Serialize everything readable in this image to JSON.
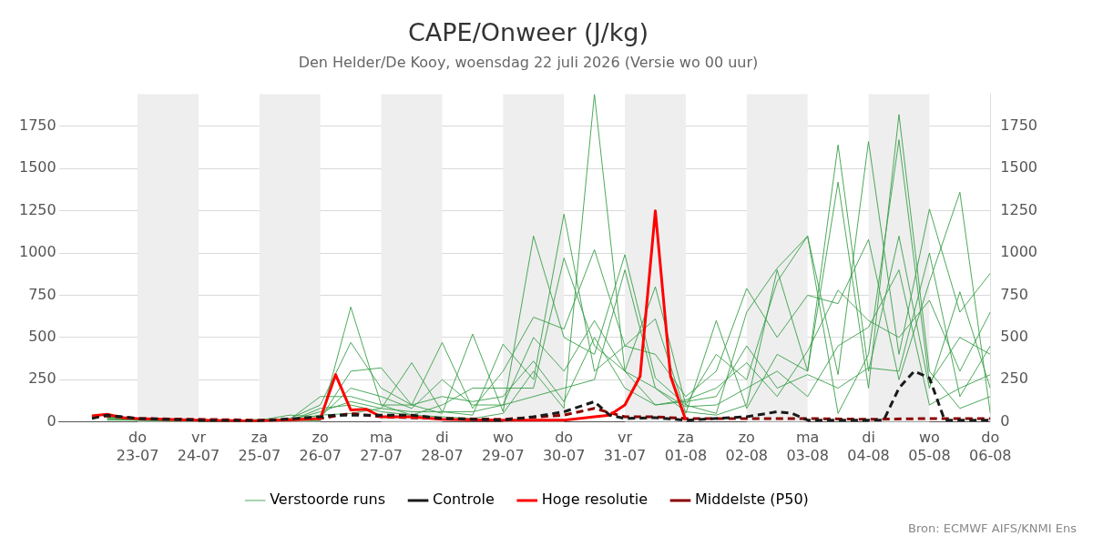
{
  "chart_data": {
    "type": "line",
    "title": "CAPE/Onweer (J/kg)",
    "subtitle": "Den Helder/De Kooy, woensdag 22 juli 2026 (Versie wo 00 uur)",
    "x": [
      "2026-07-22T12:00",
      "2026-07-23T00:00",
      "2026-07-23T12:00",
      "2026-07-24T00:00",
      "2026-07-24T12:00",
      "2026-07-25T00:00",
      "2026-07-25T12:00",
      "2026-07-26T00:00",
      "2026-07-26T12:00",
      "2026-07-27T00:00",
      "2026-07-27T12:00",
      "2026-07-28T00:00",
      "2026-07-28T12:00",
      "2026-07-29T00:00",
      "2026-07-29T12:00",
      "2026-07-30T00:00",
      "2026-07-30T12:00",
      "2026-07-31T00:00",
      "2026-07-31T12:00",
      "2026-08-01T00:00",
      "2026-08-01T12:00",
      "2026-08-02T00:00",
      "2026-08-02T12:00",
      "2026-08-03T00:00",
      "2026-08-03T12:00",
      "2026-08-04T00:00",
      "2026-08-04T12:00",
      "2026-08-05T00:00",
      "2026-08-05T12:00",
      "2026-08-06T00:00"
    ],
    "series": [
      {
        "name": "Verstoorde runs",
        "color": "#3a9f4a",
        "line_style": "solid",
        "values": [
          30,
          20,
          10,
          10,
          5,
          5,
          10,
          5,
          680,
          100,
          40,
          30,
          20,
          50,
          300,
          80,
          1940,
          300,
          200,
          60,
          40,
          100,
          900,
          300,
          1420,
          200,
          1820,
          300,
          80,
          150
        ]
      },
      {
        "color": "#3a9f4a",
        "line_style": "solid",
        "values": [
          40,
          20,
          15,
          5,
          10,
          10,
          5,
          20,
          300,
          320,
          100,
          50,
          520,
          60,
          1100,
          500,
          400,
          990,
          260,
          100,
          50,
          650,
          910,
          1100,
          280,
          1660,
          400,
          1260,
          650,
          880
        ]
      },
      {
        "color": "#3a9f4a",
        "line_style": "solid",
        "values": [
          20,
          15,
          10,
          10,
          5,
          15,
          10,
          60,
          120,
          80,
          350,
          60,
          40,
          460,
          250,
          1230,
          300,
          450,
          610,
          50,
          600,
          80,
          400,
          300,
          1640,
          300,
          1100,
          200,
          770,
          200
        ]
      },
      {
        "color": "#3a9f4a",
        "line_style": "solid",
        "values": [
          10,
          10,
          5,
          5,
          5,
          5,
          20,
          100,
          470,
          200,
          100,
          470,
          80,
          300,
          620,
          550,
          1020,
          450,
          400,
          150,
          300,
          790,
          500,
          750,
          700,
          1080,
          250,
          830,
          1360,
          50
        ]
      },
      {
        "color": "#3a9f4a",
        "line_style": "solid",
        "values": [
          30,
          20,
          10,
          10,
          10,
          10,
          40,
          30,
          200,
          150,
          80,
          250,
          100,
          100,
          500,
          300,
          600,
          300,
          800,
          100,
          400,
          250,
          830,
          1100,
          50,
          400,
          1670,
          230,
          500,
          400
        ]
      },
      {
        "color": "#3a9f4a",
        "line_style": "solid",
        "values": [
          20,
          10,
          10,
          5,
          5,
          5,
          5,
          80,
          100,
          60,
          40,
          100,
          200,
          200,
          200,
          970,
          450,
          300,
          100,
          130,
          200,
          350,
          150,
          420,
          780,
          600,
          500,
          720,
          300,
          650
        ]
      },
      {
        "color": "#3a9f4a",
        "line_style": "solid",
        "values": [
          15,
          10,
          5,
          5,
          5,
          5,
          10,
          40,
          50,
          80,
          60,
          60,
          60,
          100,
          150,
          200,
          250,
          900,
          200,
          90,
          100,
          200,
          300,
          150,
          450,
          560,
          900,
          100,
          200,
          280
        ]
      },
      {
        "color": "#3a9f4a",
        "line_style": "solid",
        "values": [
          25,
          15,
          10,
          5,
          5,
          10,
          15,
          150,
          150,
          100,
          100,
          150,
          120,
          150,
          360,
          120,
          500,
          200,
          100,
          120,
          150,
          450,
          200,
          280,
          200,
          320,
          300,
          1000,
          150,
          450
        ]
      },
      {
        "name": "Controle",
        "color": "#1a1a1a",
        "line_style": "dashed",
        "x": [
          "2026-07-22T06:00",
          "2026-07-22T12:00",
          "2026-07-23T00:00",
          "2026-07-24T00:00",
          "2026-07-25T00:00",
          "2026-07-26T00:00",
          "2026-07-26T06:00",
          "2026-07-27T00:00",
          "2026-07-27T12:00",
          "2026-07-28T00:00",
          "2026-07-29T00:00",
          "2026-07-29T12:00",
          "2026-07-30T00:00",
          "2026-07-30T12:00",
          "2026-07-30T18:00",
          "2026-07-31T00:00",
          "2026-07-31T12:00",
          "2026-08-01T00:00",
          "2026-08-02T00:00",
          "2026-08-02T12:00",
          "2026-08-02T18:00",
          "2026-08-03T00:00",
          "2026-08-04T00:00",
          "2026-08-04T06:00",
          "2026-08-04T12:00",
          "2026-08-04T18:00",
          "2026-08-05T00:00",
          "2026-08-05T06:00",
          "2026-08-06T00:00"
        ],
        "values": [
          20,
          40,
          20,
          10,
          5,
          30,
          40,
          40,
          40,
          20,
          10,
          30,
          60,
          120,
          40,
          20,
          25,
          10,
          30,
          60,
          50,
          10,
          10,
          10,
          200,
          300,
          260,
          10,
          10
        ]
      },
      {
        "name": "Hoge resolutie",
        "color": "#ff0000",
        "line_style": "solid",
        "x": [
          "2026-07-22T06:00",
          "2026-07-22T12:00",
          "2026-07-22T18:00",
          "2026-07-23T00:00",
          "2026-07-24T00:00",
          "2026-07-25T00:00",
          "2026-07-26T00:00",
          "2026-07-26T06:00",
          "2026-07-26T12:00",
          "2026-07-26T18:00",
          "2026-07-27T00:00",
          "2026-07-27T12:00",
          "2026-07-28T00:00",
          "2026-07-29T00:00",
          "2026-07-30T00:00",
          "2026-07-30T12:00",
          "2026-07-30T18:00",
          "2026-07-31T00:00",
          "2026-07-31T06:00",
          "2026-07-31T12:00",
          "2026-07-31T18:00",
          "2026-08-01T00:00"
        ],
        "values": [
          35,
          45,
          25,
          20,
          10,
          5,
          20,
          280,
          70,
          75,
          30,
          30,
          15,
          10,
          10,
          30,
          40,
          100,
          270,
          1250,
          270,
          10
        ]
      },
      {
        "name": "Middelste (P50)",
        "color": "#8b0000",
        "line_style": "dashed",
        "x": [
          "2026-07-22T06:00",
          "2026-07-22T12:00",
          "2026-07-23T00:00",
          "2026-07-25T00:00",
          "2026-07-26T00:00",
          "2026-07-26T12:00",
          "2026-07-27T00:00",
          "2026-07-28T00:00",
          "2026-07-29T00:00",
          "2026-07-30T00:00",
          "2026-07-30T12:00",
          "2026-07-31T00:00",
          "2026-07-31T12:00",
          "2026-08-01T00:00",
          "2026-08-02T00:00",
          "2026-08-03T00:00",
          "2026-08-04T00:00",
          "2026-08-05T00:00",
          "2026-08-06T00:00"
        ],
        "values": [
          30,
          35,
          20,
          10,
          20,
          50,
          30,
          20,
          15,
          40,
          80,
          30,
          30,
          20,
          20,
          20,
          15,
          20,
          20
        ]
      }
    ],
    "xlim": [
      "2026-07-21T17:00",
      "2026-08-06T00:00"
    ],
    "xticks": [
      {
        "value": "2026-07-23",
        "label": "do 23-07"
      },
      {
        "value": "2026-07-24",
        "label": "vr 24-07"
      },
      {
        "value": "2026-07-25",
        "label": "za 25-07"
      },
      {
        "value": "2026-07-26",
        "label": "zo 26-07"
      },
      {
        "value": "2026-07-27",
        "label": "ma 27-07"
      },
      {
        "value": "2026-07-28",
        "label": "di 28-07"
      },
      {
        "value": "2026-07-29",
        "label": "wo 29-07"
      },
      {
        "value": "2026-07-30",
        "label": "do 30-07"
      },
      {
        "value": "2026-07-31",
        "label": "vr 31-07"
      },
      {
        "value": "2026-08-01",
        "label": "za 01-08"
      },
      {
        "value": "2026-08-02",
        "label": "zo 02-08"
      },
      {
        "value": "2026-08-03",
        "label": "ma 03-08"
      },
      {
        "value": "2026-08-04",
        "label": "di 04-08"
      },
      {
        "value": "2026-08-05",
        "label": "wo 05-08"
      },
      {
        "value": "2026-08-06",
        "label": "do 06-08"
      }
    ],
    "ylim": [
      0,
      1940
    ],
    "yticks": [
      0,
      250,
      500,
      750,
      1000,
      1250,
      1500,
      1750
    ],
    "y2lim": [
      0,
      1940
    ],
    "y2ticks": [
      0,
      250,
      500,
      750,
      1000,
      1250,
      1500,
      1750
    ],
    "bands": [
      {
        "axis": "x",
        "from": "2026-07-23",
        "to": "2026-07-24",
        "color": "#eeeeee"
      },
      {
        "axis": "x",
        "from": "2026-07-25",
        "to": "2026-07-26",
        "color": "#eeeeee"
      },
      {
        "axis": "x",
        "from": "2026-07-27",
        "to": "2026-07-28",
        "color": "#eeeeee"
      },
      {
        "axis": "x",
        "from": "2026-07-29",
        "to": "2026-07-30",
        "color": "#eeeeee"
      },
      {
        "axis": "x",
        "from": "2026-07-31",
        "to": "2026-08-01",
        "color": "#eeeeee"
      },
      {
        "axis": "x",
        "from": "2026-08-02",
        "to": "2026-08-03",
        "color": "#eeeeee"
      },
      {
        "axis": "x",
        "from": "2026-08-04",
        "to": "2026-08-05",
        "color": "#eeeeee"
      }
    ],
    "annotations": [
      "Bron: ECMWF AIFS/KNMI Ens"
    ],
    "grid": "y",
    "legend": "bottom",
    "marker": "none"
  }
}
